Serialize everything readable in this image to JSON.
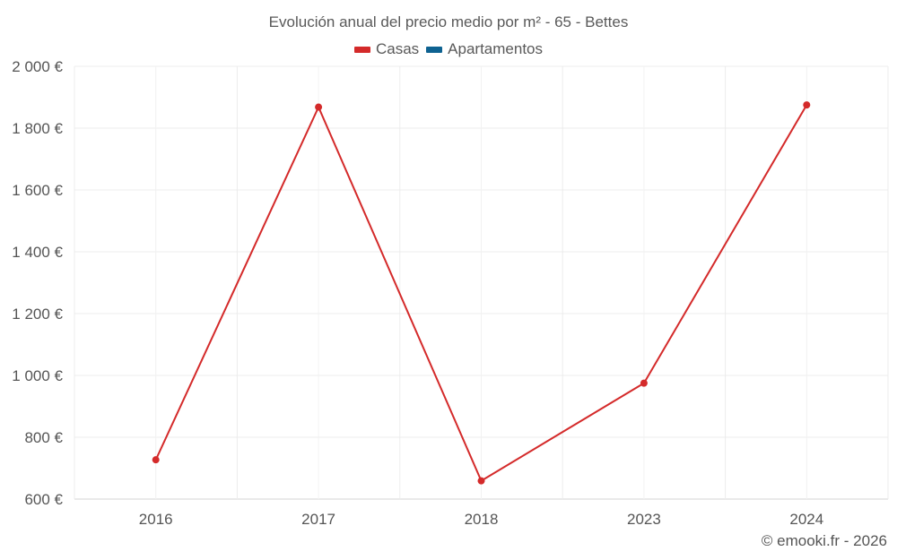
{
  "chart_data": {
    "type": "line",
    "title": "Evolución anual del precio medio por m² - 65 - Bettes",
    "categories": [
      "2016",
      "2017",
      "2018",
      "2023",
      "2024"
    ],
    "series": [
      {
        "name": "Casas",
        "color": "#d42a2a",
        "values": [
          727,
          1868,
          659,
          975,
          1875
        ]
      },
      {
        "name": "Apartamentos",
        "color": "#0e6291",
        "values": [
          null,
          null,
          null,
          null,
          null
        ]
      }
    ],
    "ylim": [
      600,
      2000
    ],
    "yticks": [
      600,
      800,
      1000,
      1200,
      1400,
      1600,
      1800,
      2000
    ],
    "ytick_labels": [
      "600 €",
      "800 €",
      "1 000 €",
      "1 200 €",
      "1 400 €",
      "1 600 €",
      "1 800 €",
      "2 000 €"
    ],
    "xlabel": "",
    "ylabel": "",
    "grid": true,
    "legend_position": "top-center"
  },
  "credit": "© emooki.fr - 2026"
}
